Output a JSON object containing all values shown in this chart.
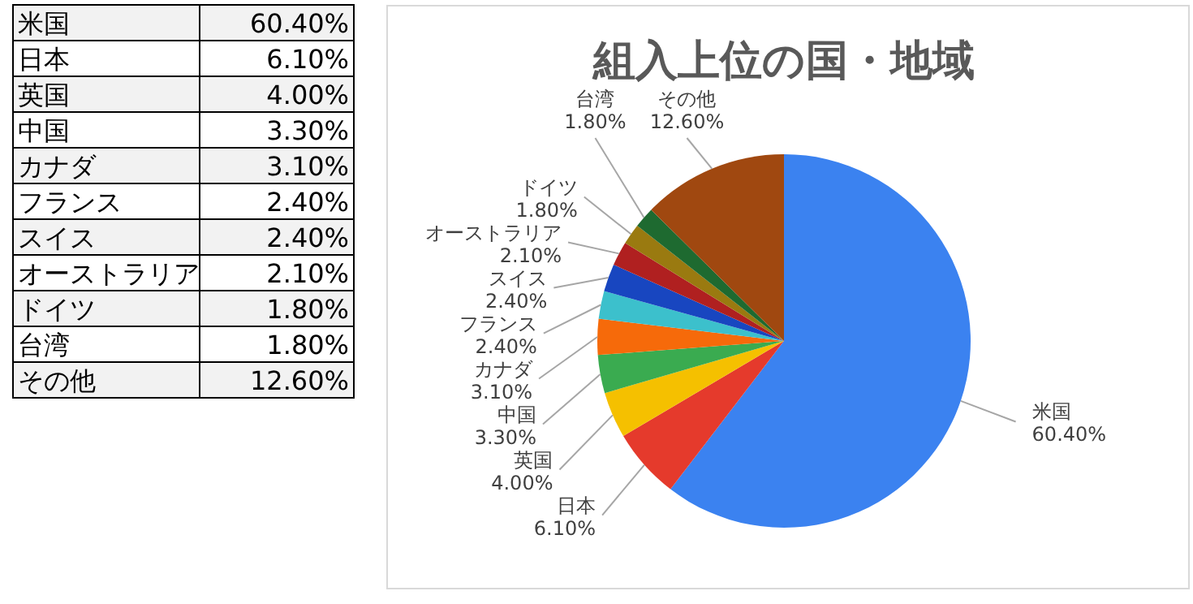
{
  "chart_data": {
    "type": "pie",
    "title": "組入上位の国・地域",
    "categories": [
      "米国",
      "日本",
      "英国",
      "中国",
      "カナダ",
      "フランス",
      "スイス",
      "オーストラリア",
      "ドイツ",
      "台湾",
      "その他"
    ],
    "values": [
      60.4,
      6.1,
      4.0,
      3.3,
      3.1,
      2.4,
      2.4,
      2.1,
      1.8,
      1.8,
      12.6
    ],
    "value_labels": [
      "60.40%",
      "6.10%",
      "4.00%",
      "3.30%",
      "3.10%",
      "2.40%",
      "2.40%",
      "2.10%",
      "1.80%",
      "1.80%",
      "12.60%"
    ],
    "colors": [
      "#3b82f0",
      "#e53a2c",
      "#f5c000",
      "#3aab50",
      "#f66a0a",
      "#3cc0cc",
      "#1846c0",
      "#b02020",
      "#9a7a10",
      "#1e6a30",
      "#a04810"
    ],
    "legend": false
  }
}
